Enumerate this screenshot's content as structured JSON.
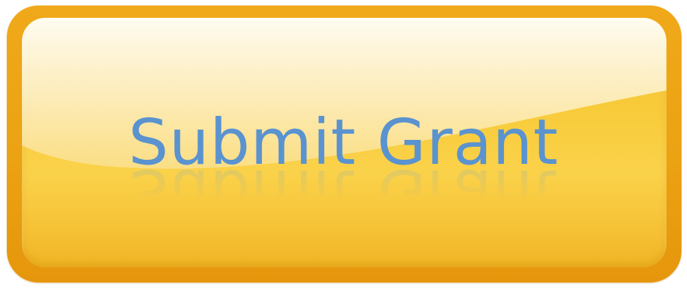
{
  "button": {
    "label": "Submit Grant"
  },
  "colors": {
    "rim": "#eba213",
    "face": "#f8cc3c",
    "text": "#5a93cf"
  }
}
